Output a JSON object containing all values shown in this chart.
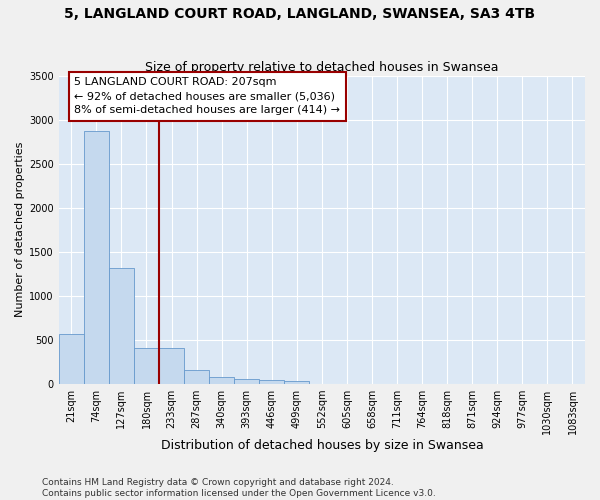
{
  "title": "5, LANGLAND COURT ROAD, LANGLAND, SWANSEA, SA3 4TB",
  "subtitle": "Size of property relative to detached houses in Swansea",
  "xlabel": "Distribution of detached houses by size in Swansea",
  "ylabel": "Number of detached properties",
  "categories": [
    "21sqm",
    "74sqm",
    "127sqm",
    "180sqm",
    "233sqm",
    "287sqm",
    "340sqm",
    "393sqm",
    "446sqm",
    "499sqm",
    "552sqm",
    "605sqm",
    "658sqm",
    "711sqm",
    "764sqm",
    "818sqm",
    "871sqm",
    "924sqm",
    "977sqm",
    "1030sqm",
    "1083sqm"
  ],
  "values": [
    570,
    2870,
    1310,
    410,
    410,
    155,
    75,
    55,
    45,
    35,
    0,
    0,
    0,
    0,
    0,
    0,
    0,
    0,
    0,
    0,
    0
  ],
  "bar_color": "#c5d9ee",
  "bar_edge_color": "#6699cc",
  "vline_x": 3.5,
  "vline_color": "#990000",
  "annotation_text": "5 LANGLAND COURT ROAD: 207sqm\n← 92% of detached houses are smaller (5,036)\n8% of semi-detached houses are larger (414) →",
  "annotation_box_facecolor": "#ffffff",
  "annotation_box_edgecolor": "#990000",
  "ylim": [
    0,
    3500
  ],
  "yticks": [
    0,
    500,
    1000,
    1500,
    2000,
    2500,
    3000,
    3500
  ],
  "bg_color": "#dce8f5",
  "grid_color": "#ffffff",
  "fig_facecolor": "#f0f0f0",
  "footer_line1": "Contains HM Land Registry data © Crown copyright and database right 2024.",
  "footer_line2": "Contains public sector information licensed under the Open Government Licence v3.0.",
  "title_fontsize": 10,
  "subtitle_fontsize": 9,
  "ylabel_fontsize": 8,
  "xlabel_fontsize": 9,
  "tick_fontsize": 7,
  "annot_fontsize": 8,
  "footer_fontsize": 6.5
}
